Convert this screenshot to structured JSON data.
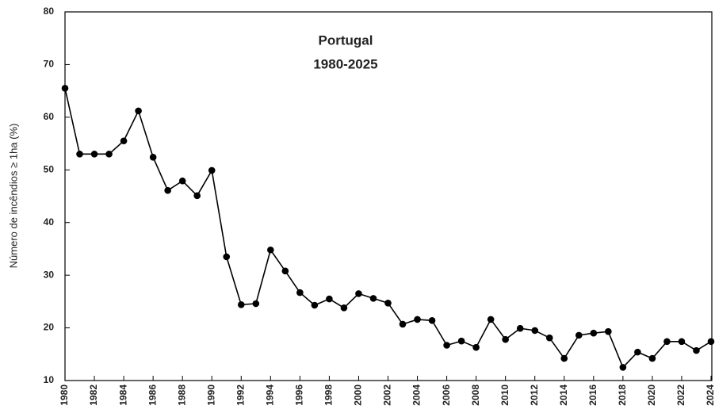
{
  "chart_data": {
    "type": "line",
    "title": "Portugal",
    "subtitle": "1980-2025",
    "y_label": "Número de incêndios ≥ 1ha  (%)",
    "x": [
      1980,
      1981,
      1982,
      1983,
      1984,
      1985,
      1986,
      1987,
      1988,
      1989,
      1990,
      1991,
      1992,
      1993,
      1994,
      1995,
      1996,
      1997,
      1998,
      1999,
      2000,
      2001,
      2002,
      2003,
      2004,
      2005,
      2006,
      2007,
      2008,
      2009,
      2010,
      2011,
      2012,
      2013,
      2014,
      2015,
      2016,
      2017,
      2018,
      2019,
      2020,
      2021,
      2022,
      2023,
      2024
    ],
    "series": [
      {
        "name": "Portugal",
        "color": "#000000",
        "values": [
          65.5,
          53,
          53,
          53,
          55.5,
          61.2,
          52.4,
          46.1,
          47.9,
          45.1,
          49.9,
          33.5,
          24.4,
          24.6,
          34.8,
          30.8,
          26.7,
          24.3,
          25.5,
          23.8,
          26.5,
          25.6,
          24.7,
          20.7,
          21.6,
          21.4,
          16.7,
          17.5,
          16.3,
          21.6,
          17.8,
          19.9,
          19.5,
          18.1,
          14.2,
          18.6,
          19.0,
          19.3,
          12.5,
          15.4,
          14.2,
          17.4,
          17.4,
          15.7,
          17.4
        ]
      }
    ],
    "xlim": [
      1980,
      2024
    ],
    "xticks": [
      1980,
      1982,
      1984,
      1986,
      1988,
      1990,
      1992,
      1994,
      1996,
      1998,
      2000,
      2002,
      2004,
      2006,
      2008,
      2010,
      2012,
      2014,
      2016,
      2018,
      2020,
      2022,
      2024
    ],
    "ylim": [
      10,
      80
    ],
    "yticks": [
      10,
      20,
      30,
      40,
      50,
      60,
      70,
      80
    ],
    "grid": false
  }
}
